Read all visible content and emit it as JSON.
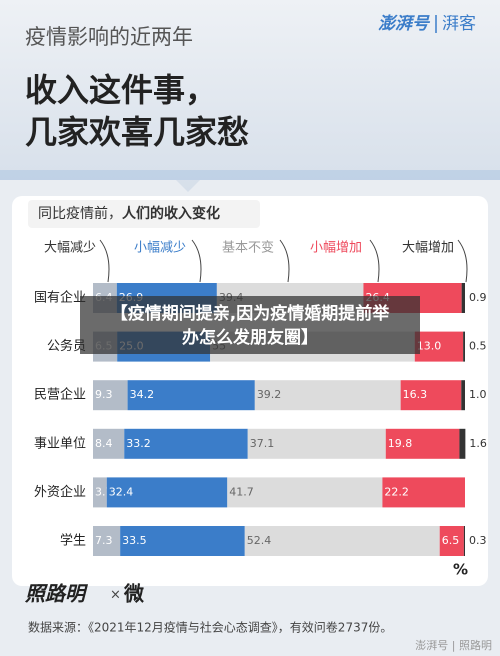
{
  "header": {
    "kicker": "疫情影响的近两年",
    "title_lines": [
      "收入这件事，",
      "几家欢喜几家愁"
    ],
    "logo": "澎湃号",
    "logo_partner": "湃客"
  },
  "chart_data": {
    "type": "stacked_bar",
    "orientation": "horizontal",
    "subtitle_plain": "同比疫情前，",
    "subtitle_bold": "人们的收入变化",
    "categories": [
      "国有企业",
      "公务员",
      "民营企业",
      "事业单位",
      "外资企业",
      "学生"
    ],
    "xlim": [
      0,
      100
    ],
    "unit": "%",
    "series": [
      {
        "name": "大幅减少",
        "color": "#b3bcc8",
        "label_color": "#ffffff",
        "values": [
          6.4,
          6.5,
          9.3,
          8.4,
          3.7,
          7.3
        ]
      },
      {
        "name": "小幅减少",
        "color": "#3b7dc9",
        "label_color": "#ffffff",
        "values": [
          26.9,
          25,
          34.2,
          33.2,
          32.4,
          33.5
        ],
        "value_labels": [
          "26.9",
          "25.0",
          "34.2",
          "33.2",
          "32.4",
          "33.5"
        ]
      },
      {
        "name": "基本不变",
        "color": "#dcdcdc",
        "label_color": "#666666",
        "values": [
          39.4,
          55,
          39.2,
          37.1,
          41.7,
          52.4
        ]
      },
      {
        "name": "小幅增加",
        "color": "#ee4a5c",
        "label_color": "#ffffff",
        "values": [
          26.4,
          13,
          16.3,
          19.8,
          22.2,
          6.5
        ],
        "value_labels": [
          "26.4",
          "13.0",
          "16.3",
          "19.8",
          "22.2",
          "6.5"
        ]
      },
      {
        "name": "大幅增加",
        "color": "#333333",
        "label_color": "#333333",
        "values": [
          0.9,
          0.5,
          1,
          1.6,
          null,
          0.3
        ],
        "value_labels": [
          "0.9",
          "0.5",
          "1.0",
          "1.6",
          null,
          "0.3"
        ]
      }
    ],
    "legend_colors": [
      "#333333",
      "#3b7dc9",
      "#999999",
      "#ee4a5c",
      "#333333"
    ]
  },
  "overlay_caption": [
    "【疫情期间提亲,因为疫情婚期提前举",
    "办怎么发朋友圈】"
  ],
  "footer": {
    "brand": "照路明",
    "times": "×",
    "brand2": "微",
    "source": "数据来源：《2021年12月疫情与社会心态调查》，有效问卷2737份。",
    "watermark": "澎湃号 | 照路明"
  }
}
